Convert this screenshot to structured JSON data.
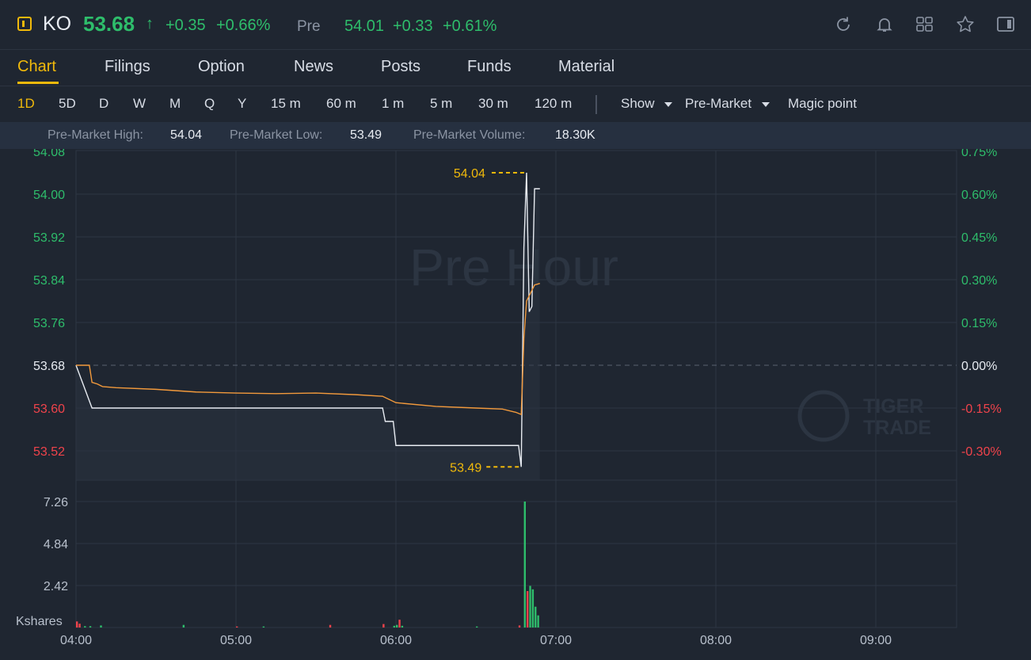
{
  "header": {
    "symbol": "KO",
    "price": "53.68",
    "price_arrow": "↑",
    "change": "+0.35",
    "change_pct": "+0.66%",
    "session_label": "Pre",
    "session_price": "54.01",
    "session_change": "+0.33",
    "session_change_pct": "+0.61%"
  },
  "toolbar_icons": [
    "refresh-icon",
    "bell-icon",
    "grid-icon",
    "star-icon",
    "panel-icon"
  ],
  "tabs": [
    {
      "label": "Chart",
      "active": true
    },
    {
      "label": "Filings"
    },
    {
      "label": "Option"
    },
    {
      "label": "News"
    },
    {
      "label": "Posts"
    },
    {
      "label": "Funds"
    },
    {
      "label": "Material"
    }
  ],
  "periods": [
    {
      "label": "1D",
      "active": true
    },
    {
      "label": "5D"
    },
    {
      "label": "D"
    },
    {
      "label": "W"
    },
    {
      "label": "M"
    },
    {
      "label": "Q"
    },
    {
      "label": "Y"
    },
    {
      "label": "15 m"
    },
    {
      "label": "60 m"
    },
    {
      "label": "1 m"
    },
    {
      "label": "5 m"
    },
    {
      "label": "30 m"
    },
    {
      "label": "120 m"
    }
  ],
  "dropdowns": {
    "show": "Show",
    "session": "Pre-Market",
    "magic": "Magic point"
  },
  "premarket_stats": {
    "high_label": "Pre-Market High:",
    "high": "54.04",
    "low_label": "Pre-Market Low:",
    "low": "53.49",
    "volume_label": "Pre-Market Volume:",
    "volume": "18.30K"
  },
  "watermarks": {
    "session": "Pre Hour",
    "brand_line1": "TIGER",
    "brand_line2": "TRADE"
  },
  "colors": {
    "up": "#2ebd6b",
    "down": "#f0434b",
    "accent": "#f0b90b",
    "price_line": "#e8ecf2",
    "avg_line": "#f39a3c",
    "background": "#1f2631"
  },
  "chart_data": {
    "type": "line",
    "price_axis": {
      "ticks": [
        "54.08",
        "54.00",
        "53.92",
        "53.84",
        "53.76",
        "53.68",
        "53.60",
        "53.52"
      ],
      "pct_ticks": [
        "0.75%",
        "0.60%",
        "0.45%",
        "0.30%",
        "0.15%",
        "0.00%",
        "-0.15%",
        "-0.30%"
      ],
      "prev_close": 53.68,
      "ylim": [
        53.52,
        54.08
      ]
    },
    "time_axis": {
      "ticks": [
        "04:00",
        "05:00",
        "06:00",
        "07:00",
        "08:00",
        "09:00"
      ],
      "xlim": [
        "04:00",
        "09:30"
      ]
    },
    "series": [
      {
        "role": "price",
        "x": [
          "04:00",
          "04:06",
          "05:55",
          "05:56",
          "05:59",
          "06:00",
          "06:46",
          "06:47",
          "06:48",
          "06:49",
          "06:50",
          "06:51",
          "06:52",
          "06:53",
          "06:54"
        ],
        "values": [
          53.68,
          53.6,
          53.6,
          53.575,
          53.575,
          53.53,
          53.53,
          53.49,
          53.9,
          54.04,
          53.78,
          53.79,
          54.01,
          54.01,
          54.01
        ]
      },
      {
        "role": "average",
        "x": [
          "04:00",
          "04:05",
          "04:06",
          "04:08",
          "04:10",
          "04:15",
          "04:30",
          "04:45",
          "05:00",
          "05:15",
          "05:30",
          "05:45",
          "05:55",
          "06:00",
          "06:15",
          "06:30",
          "06:40",
          "06:45",
          "06:46",
          "06:47",
          "06:48",
          "06:49",
          "06:50",
          "06:51",
          "06:52",
          "06:54"
        ],
        "values": [
          53.68,
          53.68,
          53.648,
          53.645,
          53.64,
          53.638,
          53.635,
          53.63,
          53.628,
          53.627,
          53.628,
          53.625,
          53.622,
          53.61,
          53.603,
          53.6,
          53.598,
          53.592,
          53.59,
          53.588,
          53.73,
          53.8,
          53.81,
          53.82,
          53.83,
          53.833
        ]
      }
    ],
    "markers": {
      "high": "54.04",
      "low": "53.49"
    },
    "volume": {
      "unit_label": "Kshares",
      "ticks": [
        "7.26",
        "4.84",
        "2.42"
      ],
      "ylim": [
        0,
        7.5
      ],
      "bars": [
        {
          "x": "04:00",
          "v": 0.35,
          "dir": "down"
        },
        {
          "x": "04:01",
          "v": 0.22,
          "dir": "down"
        },
        {
          "x": "04:03",
          "v": 0.08,
          "dir": "up"
        },
        {
          "x": "04:05",
          "v": 0.08,
          "dir": "up"
        },
        {
          "x": "04:09",
          "v": 0.12,
          "dir": "up"
        },
        {
          "x": "04:40",
          "v": 0.15,
          "dir": "up"
        },
        {
          "x": "05:00",
          "v": 0.06,
          "dir": "down"
        },
        {
          "x": "05:10",
          "v": 0.06,
          "dir": "up"
        },
        {
          "x": "05:35",
          "v": 0.15,
          "dir": "down"
        },
        {
          "x": "05:55",
          "v": 0.2,
          "dir": "down"
        },
        {
          "x": "05:59",
          "v": 0.1,
          "dir": "up"
        },
        {
          "x": "06:00",
          "v": 0.15,
          "dir": "up"
        },
        {
          "x": "06:01",
          "v": 0.45,
          "dir": "down"
        },
        {
          "x": "06:02",
          "v": 0.1,
          "dir": "up"
        },
        {
          "x": "06:30",
          "v": 0.06,
          "dir": "up"
        },
        {
          "x": "06:46",
          "v": 0.12,
          "dir": "down"
        },
        {
          "x": "06:48",
          "v": 7.26,
          "dir": "up"
        },
        {
          "x": "06:49",
          "v": 2.1,
          "dir": "down"
        },
        {
          "x": "06:50",
          "v": 2.4,
          "dir": "up"
        },
        {
          "x": "06:51",
          "v": 2.2,
          "dir": "up"
        },
        {
          "x": "06:52",
          "v": 1.2,
          "dir": "up"
        },
        {
          "x": "06:53",
          "v": 0.7,
          "dir": "up"
        }
      ]
    }
  }
}
